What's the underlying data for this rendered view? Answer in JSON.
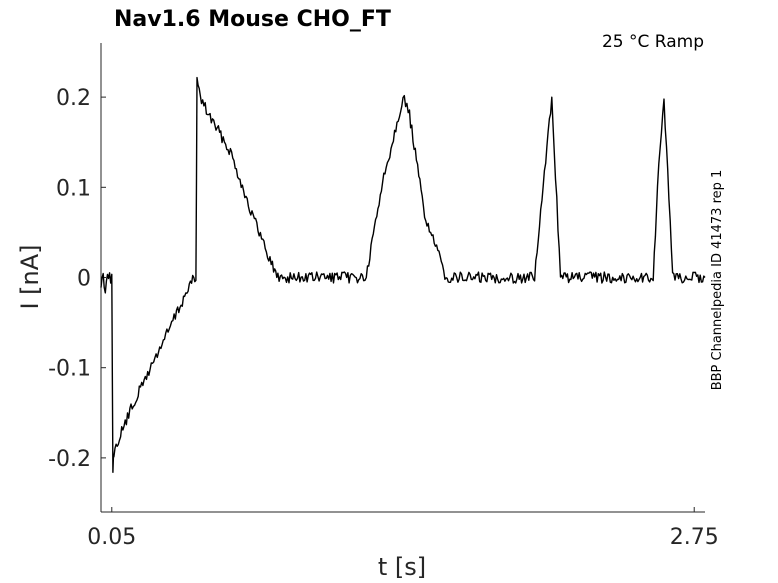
{
  "chart_data": {
    "type": "line",
    "title": "Nav1.6  Mouse  CHO_FT",
    "subtitle": "25 °C  Ramp",
    "side_note": "BBP Channelpedia ID 41473 rep 1",
    "xlabel": "t [s]",
    "ylabel": "I [nA]",
    "xlim": [
      0.0,
      2.8
    ],
    "ylim": [
      -0.26,
      0.26
    ],
    "x_ticks": [
      0.05,
      2.75
    ],
    "x_tick_labels": [
      "0.05",
      "2.75"
    ],
    "y_ticks": [
      -0.2,
      -0.1,
      0,
      0.1,
      0.2
    ],
    "y_tick_labels": [
      "-0.2",
      "-0.1",
      "0",
      "0.1",
      "0.2"
    ],
    "grid": false,
    "series": [
      {
        "x": [
          0.0,
          0.01,
          0.02,
          0.03,
          0.04,
          0.05,
          0.055,
          0.06,
          0.08,
          0.15,
          0.25,
          0.35,
          0.42,
          0.44,
          0.445,
          0.46,
          0.5,
          0.6,
          0.7,
          0.8,
          0.82,
          0.9,
          1.0,
          1.1,
          1.2,
          1.23,
          1.3,
          1.4,
          1.43,
          1.5,
          1.6,
          1.62,
          1.7,
          1.8,
          1.9,
          2.0,
          2.01,
          2.05,
          2.09,
          2.13,
          2.2,
          2.3,
          2.4,
          2.5,
          2.56,
          2.58,
          2.61,
          2.65,
          2.7,
          2.8
        ],
        "y": [
          -0.01,
          0.005,
          -0.015,
          0.008,
          0.0,
          0.0,
          -0.21,
          -0.2,
          -0.18,
          -0.14,
          -0.09,
          -0.04,
          -0.005,
          0.0,
          0.22,
          0.2,
          0.18,
          0.14,
          0.07,
          0.01,
          0.0,
          0.0,
          0.0,
          0.0,
          0.0,
          0.0,
          0.1,
          0.2,
          0.18,
          0.07,
          0.0,
          0.0,
          0.0,
          0.0,
          0.0,
          0.0,
          0.0,
          0.1,
          0.2,
          0.0,
          0.0,
          0.0,
          0.0,
          0.0,
          0.0,
          0.1,
          0.2,
          0.0,
          0.0,
          0.0
        ]
      }
    ]
  }
}
